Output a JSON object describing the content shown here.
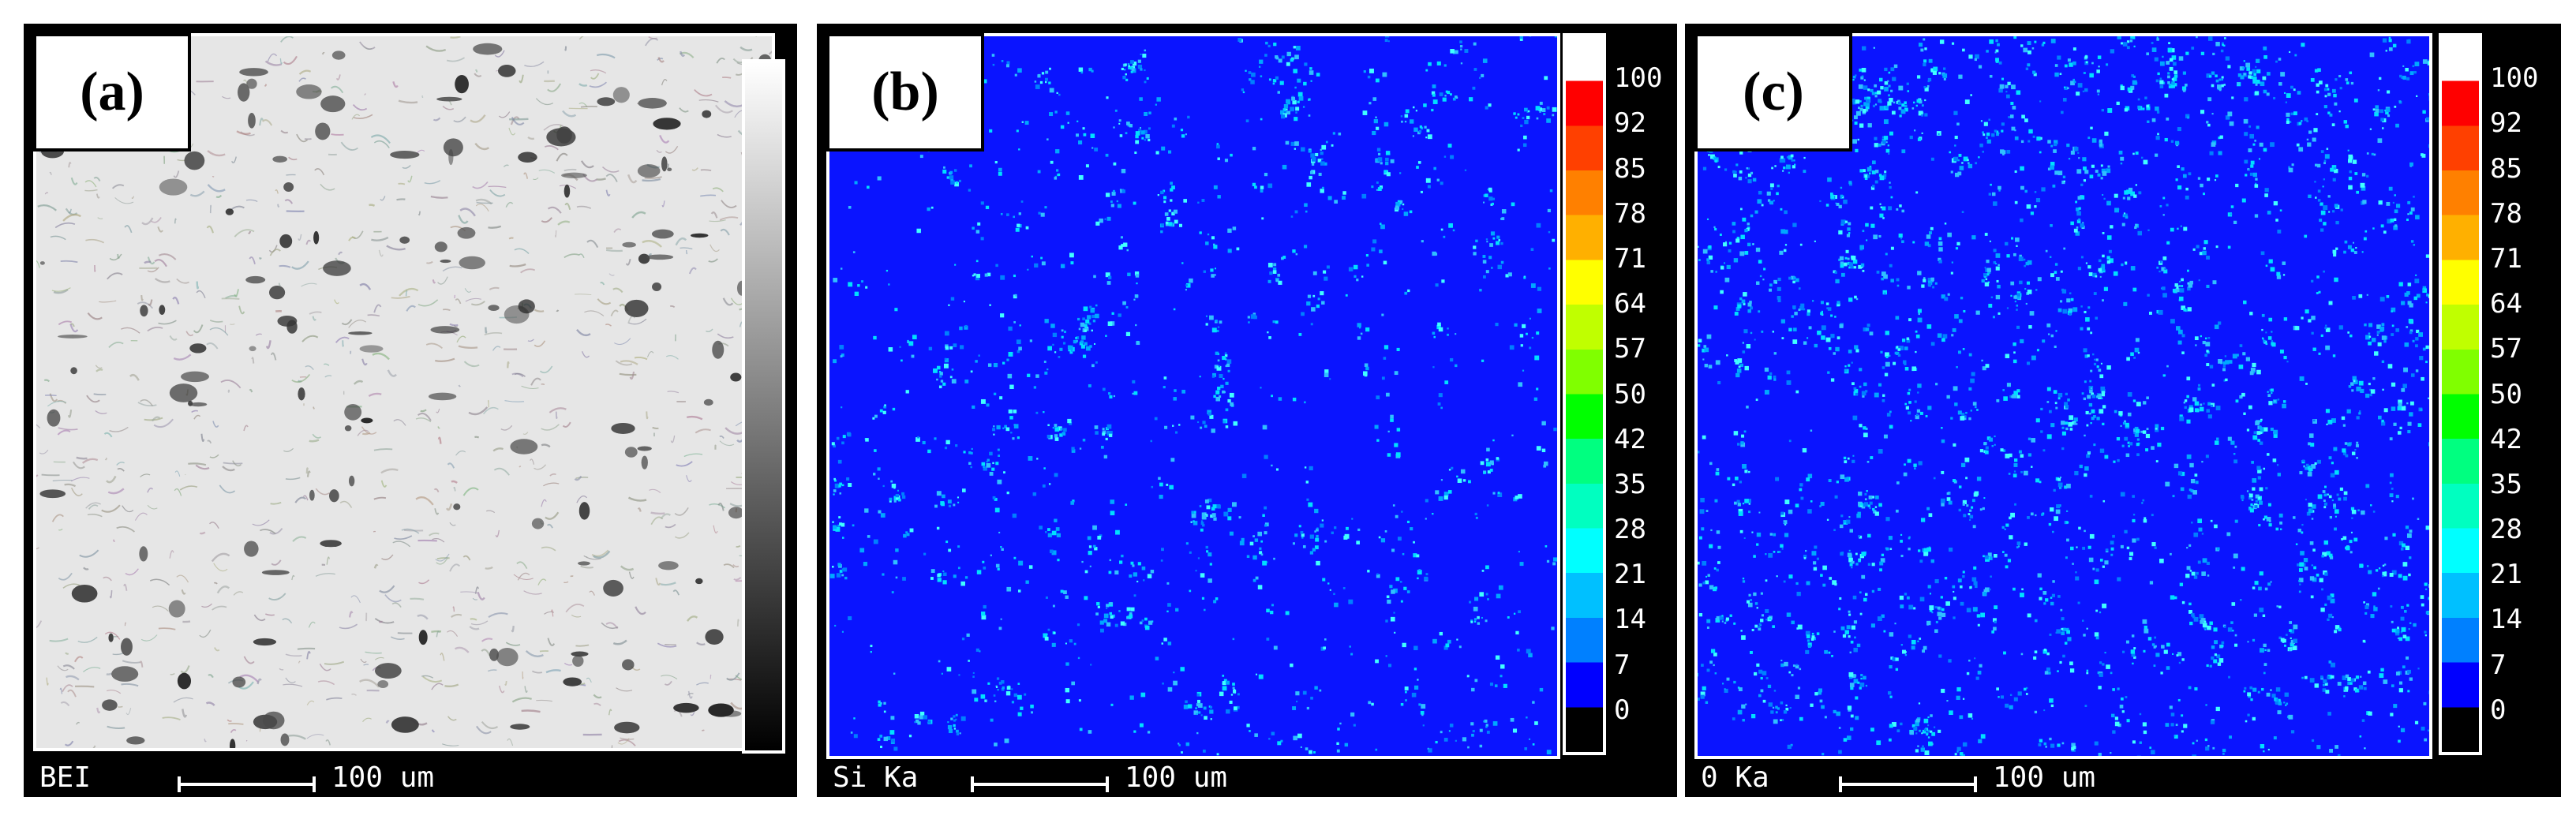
{
  "panels": [
    {
      "label": "(a)",
      "signal": "BEI",
      "scale_text": "100 um",
      "colorbar": "grayscale"
    },
    {
      "label": "(b)",
      "signal": "Si Ka",
      "scale_text": "100 um",
      "colorbar": "rainbow",
      "ticks": [
        "100",
        "92",
        "85",
        "78",
        "71",
        "64",
        "57",
        "50",
        "42",
        "35",
        "28",
        "21",
        "14",
        "7",
        "0"
      ]
    },
    {
      "label": "(c)",
      "signal": "0 Ka",
      "scale_text": "100 um",
      "colorbar": "rainbow",
      "ticks": [
        "100",
        "92",
        "85",
        "78",
        "71",
        "64",
        "57",
        "50",
        "42",
        "35",
        "28",
        "21",
        "14",
        "7",
        "0"
      ]
    }
  ],
  "colors": {
    "map_background": "#0a14ff",
    "bei_background": "#e6e6e6",
    "rainbow": [
      "#ffffff",
      "#ff0000",
      "#ff4000",
      "#ff8000",
      "#ffb000",
      "#ffff00",
      "#c0ff00",
      "#80ff00",
      "#00ff00",
      "#00ff80",
      "#00ffc0",
      "#00ffff",
      "#00c0ff",
      "#0080ff",
      "#0000ff",
      "#000000"
    ]
  }
}
